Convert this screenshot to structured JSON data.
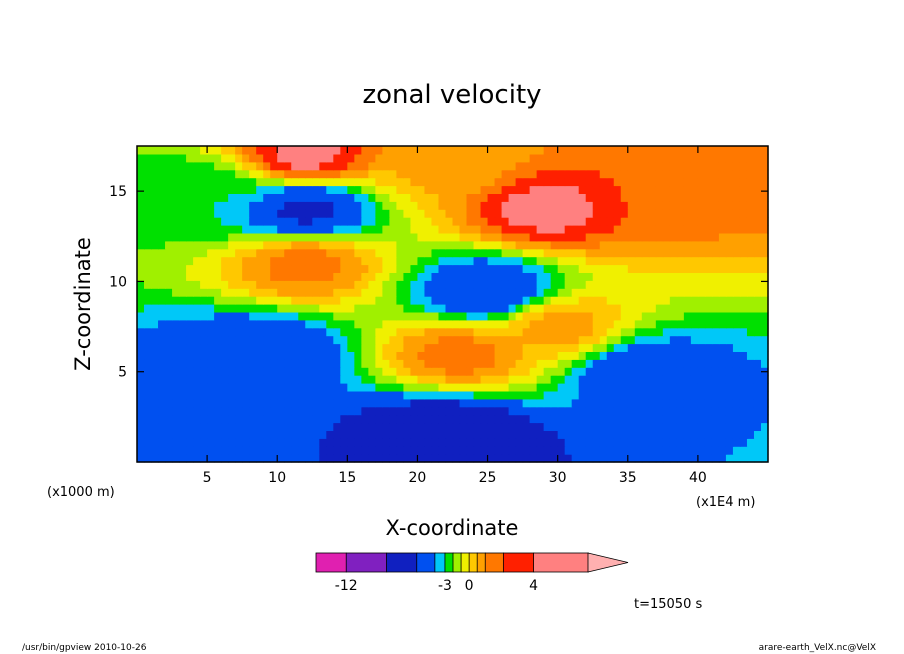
{
  "chart_data": {
    "type": "heatmap",
    "title": "zonal velocity",
    "xlabel": "X-coordinate",
    "ylabel": "Z-coordinate",
    "x_unit": "(x1E4 m)",
    "y_unit": "(x1000 m)",
    "xlim": [
      0,
      45
    ],
    "ylim": [
      0,
      17.5
    ],
    "x_ticks": [
      5,
      10,
      15,
      20,
      25,
      30,
      35,
      40
    ],
    "y_ticks": [
      5,
      10,
      15
    ],
    "colorbar": {
      "levels": [
        -15,
        -12,
        -9,
        -6,
        -4,
        -3,
        -2,
        -1,
        0,
        1,
        2,
        3,
        4,
        6,
        10
      ],
      "colors": [
        "#e020b0",
        "#8020c0",
        "#1020c0",
        "#0050f0",
        "#00c8f8",
        "#00e000",
        "#a0f000",
        "#f0f000",
        "#ffc800",
        "#ffa000",
        "#ff7800",
        "#ff2000",
        "#ff8080",
        "#ffb0b0"
      ],
      "tick_labels": [
        "-12",
        "-3",
        "0",
        "4"
      ],
      "tick_values": [
        -12,
        -3,
        0,
        4
      ],
      "extend": "max"
    },
    "time_label": "t=15050 s",
    "footer_left": "/usr/bin/gpview   2010-10-26",
    "footer_right": "arare-earth_VelX.nc@VelX",
    "features": [
      {
        "x": 12,
        "z": 17,
        "value": 4.5
      },
      {
        "x": 29,
        "z": 14,
        "value": 4.5
      },
      {
        "x": 12,
        "z": 11,
        "value": 2.5
      },
      {
        "x": 22,
        "z": 16.5,
        "value": 1.2
      },
      {
        "x": 40,
        "z": 15,
        "value": 2.5
      },
      {
        "x": 12,
        "z": 14,
        "value": -6.5
      },
      {
        "x": 25,
        "z": 9.5,
        "value": -6
      },
      {
        "x": 9,
        "z": 6,
        "value": -6
      },
      {
        "x": 22,
        "z": 1.5,
        "value": -9
      },
      {
        "x": 36,
        "z": 5,
        "value": -5.5
      },
      {
        "x": 2,
        "z": 1,
        "value": -5
      },
      {
        "x": 23,
        "z": 6,
        "value": 2.5
      },
      {
        "x": 30,
        "z": 7.5,
        "value": 1.5
      },
      {
        "x": 5,
        "z": 15,
        "value": -3
      }
    ]
  }
}
